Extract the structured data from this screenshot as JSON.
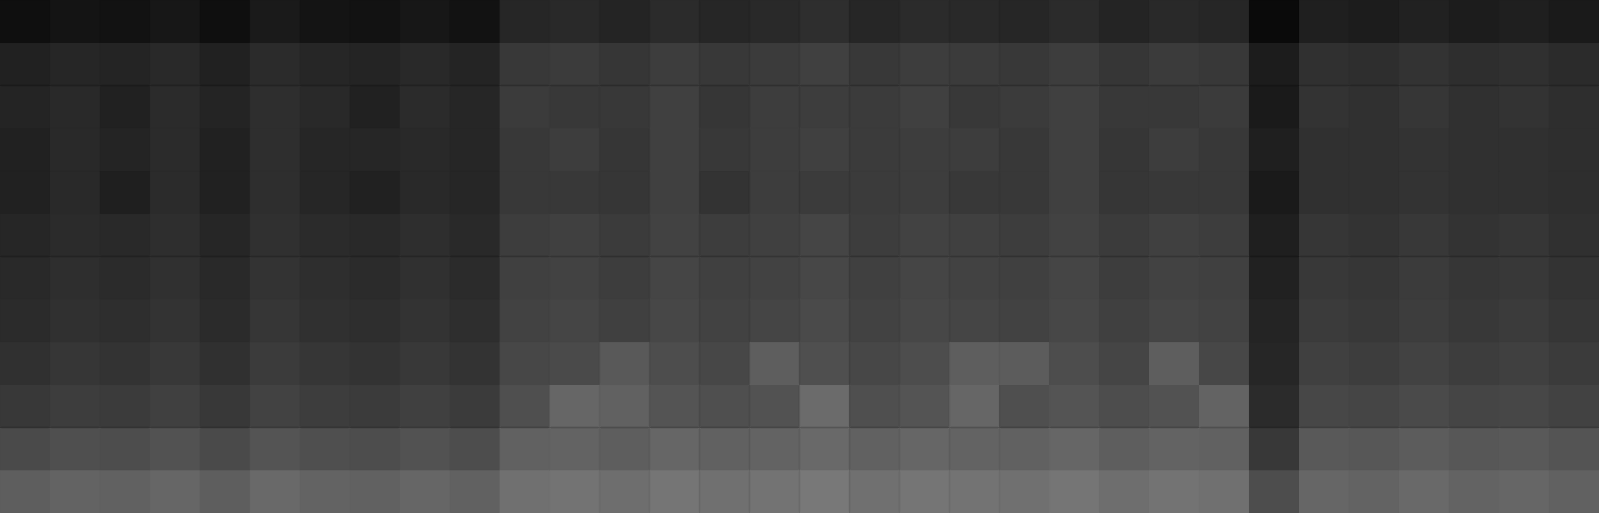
{
  "chart_data": {
    "type": "heatmap",
    "tick_labels": false,
    "grid": false,
    "zlim": [
      0,
      100
    ],
    "cells": [
      [
        6,
        8,
        7,
        9,
        6,
        10,
        8,
        7,
        9,
        7,
        15,
        16,
        14,
        17,
        15,
        16,
        18,
        15,
        17,
        16,
        15,
        17,
        14,
        16,
        15,
        4,
        12,
        11,
        13,
        11,
        12,
        10
      ],
      [
        13,
        15,
        14,
        16,
        13,
        17,
        15,
        14,
        16,
        14,
        22,
        23,
        21,
        24,
        22,
        23,
        25,
        22,
        24,
        23,
        22,
        24,
        21,
        23,
        22,
        11,
        19,
        18,
        20,
        18,
        19,
        17
      ],
      [
        14,
        16,
        13,
        17,
        14,
        18,
        16,
        13,
        17,
        15,
        23,
        22,
        22,
        25,
        21,
        24,
        24,
        23,
        25,
        22,
        23,
        25,
        22,
        22,
        23,
        10,
        20,
        19,
        21,
        19,
        20,
        18
      ],
      [
        13,
        16,
        14,
        17,
        13,
        18,
        15,
        15,
        16,
        15,
        22,
        24,
        21,
        25,
        22,
        24,
        25,
        23,
        24,
        24,
        22,
        25,
        21,
        24,
        22,
        12,
        19,
        19,
        20,
        19,
        19,
        18
      ],
      [
        13,
        16,
        12,
        17,
        13,
        18,
        15,
        13,
        16,
        15,
        22,
        22,
        21,
        25,
        20,
        24,
        23,
        23,
        24,
        22,
        22,
        25,
        21,
        22,
        22,
        10,
        19,
        19,
        20,
        19,
        19,
        18
      ],
      [
        15,
        17,
        16,
        18,
        15,
        19,
        17,
        16,
        18,
        16,
        24,
        25,
        23,
        26,
        24,
        25,
        27,
        24,
        26,
        25,
        24,
        26,
        23,
        25,
        24,
        12,
        21,
        20,
        22,
        20,
        21,
        19
      ],
      [
        16,
        18,
        17,
        19,
        16,
        20,
        18,
        17,
        19,
        17,
        25,
        26,
        24,
        27,
        25,
        26,
        28,
        25,
        27,
        26,
        25,
        27,
        24,
        26,
        25,
        13,
        22,
        21,
        23,
        21,
        22,
        20
      ],
      [
        17,
        19,
        18,
        20,
        17,
        21,
        19,
        18,
        20,
        18,
        26,
        27,
        25,
        28,
        26,
        27,
        29,
        26,
        28,
        27,
        26,
        28,
        25,
        27,
        26,
        14,
        23,
        22,
        24,
        22,
        23,
        21
      ],
      [
        19,
        21,
        20,
        22,
        19,
        23,
        21,
        20,
        22,
        20,
        28,
        29,
        35,
        30,
        28,
        37,
        31,
        28,
        30,
        37,
        36,
        30,
        27,
        37,
        28,
        15,
        25,
        24,
        26,
        24,
        25,
        23
      ],
      [
        22,
        24,
        23,
        25,
        22,
        26,
        24,
        23,
        25,
        23,
        31,
        40,
        38,
        33,
        31,
        32,
        42,
        31,
        33,
        40,
        31,
        33,
        30,
        32,
        39,
        17,
        28,
        27,
        29,
        27,
        28,
        26
      ],
      [
        29,
        31,
        30,
        32,
        29,
        33,
        31,
        30,
        32,
        30,
        38,
        39,
        37,
        40,
        38,
        39,
        41,
        38,
        40,
        39,
        38,
        40,
        37,
        39,
        38,
        22,
        35,
        34,
        36,
        34,
        35,
        33
      ],
      [
        37,
        39,
        38,
        40,
        37,
        41,
        39,
        38,
        40,
        38,
        44,
        45,
        43,
        46,
        44,
        45,
        47,
        44,
        46,
        45,
        44,
        46,
        43,
        45,
        44,
        30,
        40,
        39,
        41,
        39,
        40,
        38
      ]
    ]
  }
}
